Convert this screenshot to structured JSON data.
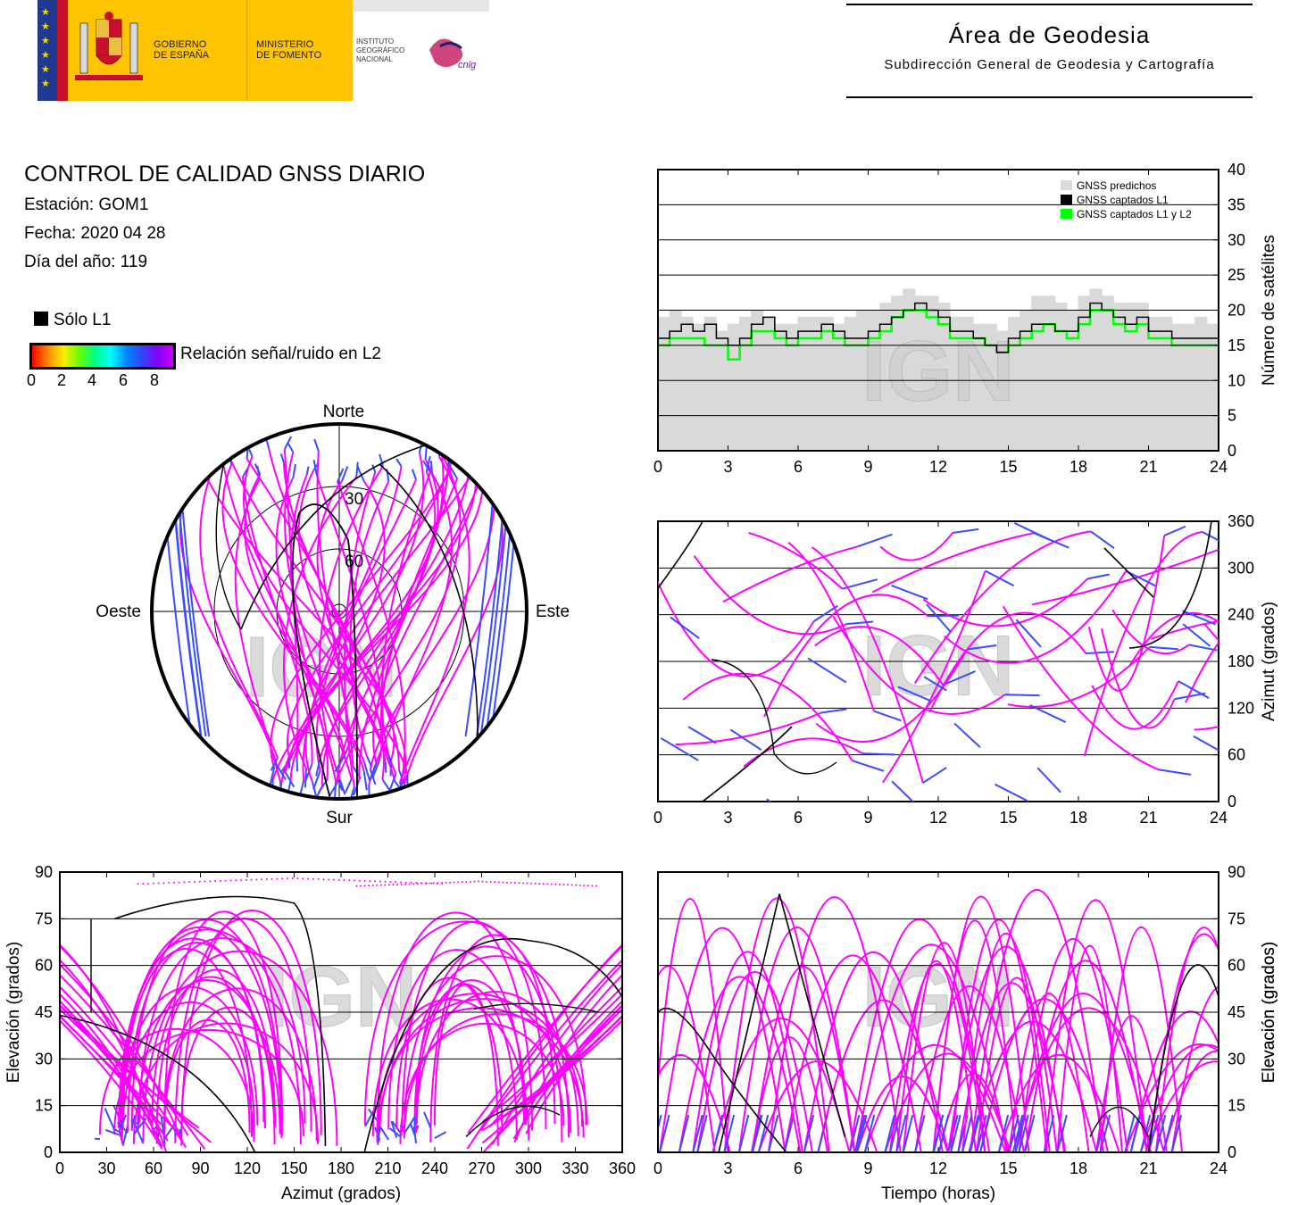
{
  "header": {
    "gov_line1": "GOBIERNO",
    "gov_line2": "DE ESPAÑA",
    "min_line1": "MINISTERIO",
    "min_line2": "DE FOMENTO",
    "ign_line1": "INSTITUTO",
    "ign_line2": "GEOGRÁFICO",
    "ign_line3": "NACIONAL",
    "cnig": "cnig",
    "area": "Área de Geodesia",
    "subarea": "Subdirección General de Geodesia y Cartografía"
  },
  "info": {
    "title": "CONTROL DE CALIDAD GNSS DIARIO",
    "station": "Estación: GOM1",
    "date": "Fecha: 2020 04 28",
    "doy": "Día del año: 119",
    "only_l1": "Sólo L1",
    "snr_label": "Relación señal/ruido en L2",
    "snr_ticks": [
      "0",
      "2",
      "4",
      "6",
      "8"
    ]
  },
  "colors": {
    "predicted": "#d9d9d9",
    "l1": "#000000",
    "l1l2": "#00ff00",
    "track": "#ff00ff",
    "low_snr": "#3a4cff",
    "watermark": "#cfcfcf"
  },
  "watermark": "IGN",
  "chart_data": [
    {
      "id": "sat-count",
      "type": "area",
      "xlabel": "",
      "ylabel": "Número de satélites",
      "xlim": [
        0,
        24
      ],
      "ylim": [
        0,
        40
      ],
      "xticks": [
        "0",
        "3",
        "6",
        "9",
        "12",
        "15",
        "18",
        "21",
        "24"
      ],
      "yticks": [
        "0",
        "5",
        "10",
        "15",
        "20",
        "25",
        "30",
        "35",
        "40"
      ],
      "grid": "horizontal",
      "legend": [
        "GNSS predichos",
        "GNSS captados L1",
        "GNSS captados L1 y L2"
      ],
      "legend_position": "top-right",
      "x": [
        0,
        0.5,
        1,
        1.5,
        2,
        2.5,
        3,
        3.5,
        4,
        4.5,
        5,
        5.5,
        6,
        6.5,
        7,
        7.5,
        8,
        8.5,
        9,
        9.5,
        10,
        10.5,
        11,
        11.5,
        12,
        12.5,
        13,
        13.5,
        14,
        14.5,
        15,
        15.5,
        16,
        16.5,
        17,
        17.5,
        18,
        18.5,
        19,
        19.5,
        20,
        20.5,
        21,
        21.5,
        22,
        22.5,
        23,
        23.5,
        24
      ],
      "series": [
        {
          "name": "GNSS predichos",
          "values": [
            19,
            20,
            19,
            18,
            19,
            17,
            18,
            19,
            20,
            19,
            18,
            18,
            19,
            19,
            19,
            18,
            19,
            20,
            20,
            21,
            22,
            23,
            22,
            22,
            21,
            19,
            19,
            18,
            18,
            17,
            19,
            20,
            22,
            22,
            21,
            20,
            22,
            23,
            22,
            21,
            21,
            21,
            19,
            19,
            18,
            18,
            19,
            18,
            18
          ]
        },
        {
          "name": "GNSS captados L1",
          "values": [
            16,
            17,
            18,
            17,
            18,
            16,
            15,
            16,
            18,
            19,
            17,
            16,
            17,
            17,
            18,
            17,
            16,
            16,
            17,
            18,
            19,
            20,
            21,
            20,
            19,
            17,
            17,
            16,
            15,
            14,
            16,
            17,
            18,
            18,
            17,
            17,
            19,
            21,
            20,
            19,
            18,
            19,
            17,
            17,
            16,
            16,
            16,
            16,
            16
          ]
        },
        {
          "name": "GNSS captados L1 y L2",
          "values": [
            15,
            16,
            16,
            16,
            15,
            15,
            13,
            15,
            17,
            17,
            16,
            15,
            16,
            16,
            17,
            16,
            15,
            15,
            16,
            17,
            19,
            20,
            20,
            19,
            18,
            16,
            16,
            16,
            15,
            14,
            15,
            16,
            17,
            18,
            17,
            16,
            18,
            20,
            20,
            18,
            17,
            18,
            16,
            16,
            15,
            15,
            15,
            15,
            15
          ]
        }
      ]
    },
    {
      "id": "azimuth-time",
      "type": "scatter",
      "xlabel": "",
      "ylabel": "Azimut (grados)",
      "xlim": [
        0,
        24
      ],
      "ylim": [
        0,
        360
      ],
      "xticks": [
        "0",
        "3",
        "6",
        "9",
        "12",
        "15",
        "18",
        "21",
        "24"
      ],
      "yticks": [
        "0",
        "60",
        "120",
        "180",
        "240",
        "300",
        "360"
      ],
      "grid": "horizontal"
    },
    {
      "id": "elev-azimuth",
      "type": "scatter",
      "xlabel": "Azimut (grados)",
      "ylabel": "Elevación (grados)",
      "xlim": [
        0,
        360
      ],
      "ylim": [
        0,
        90
      ],
      "xticks": [
        "0",
        "30",
        "60",
        "90",
        "120",
        "150",
        "180",
        "210",
        "240",
        "270",
        "300",
        "330",
        "360"
      ],
      "yticks": [
        "0",
        "15",
        "30",
        "45",
        "60",
        "75",
        "90"
      ],
      "grid": "horizontal"
    },
    {
      "id": "elev-time",
      "type": "line",
      "xlabel": "Tiempo (horas)",
      "ylabel": "Elevación (grados)",
      "xlim": [
        0,
        24
      ],
      "ylim": [
        0,
        90
      ],
      "xticks": [
        "0",
        "3",
        "6",
        "9",
        "12",
        "15",
        "18",
        "21",
        "24"
      ],
      "yticks": [
        "0",
        "15",
        "30",
        "45",
        "60",
        "75",
        "90"
      ],
      "grid": "horizontal"
    },
    {
      "id": "skyplot",
      "type": "scatter",
      "labels": {
        "north": "Norte",
        "south": "Sur",
        "east": "Este",
        "west": "Oeste"
      },
      "rings": [
        "30",
        "60"
      ]
    }
  ]
}
